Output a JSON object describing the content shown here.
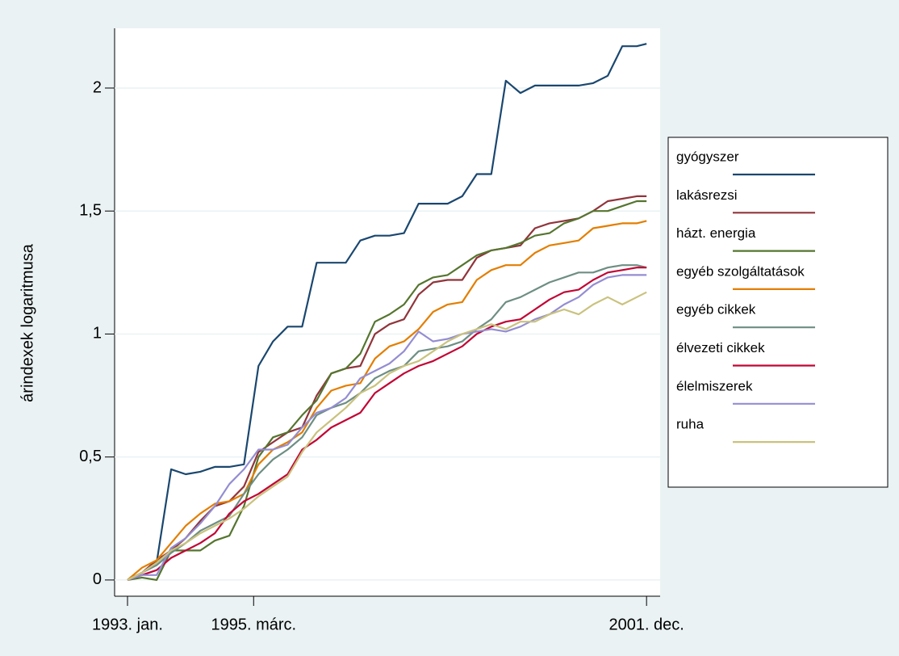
{
  "chart_data": {
    "type": "line",
    "y_label": "árindexek logaritmusa",
    "x": [
      0,
      3,
      6,
      9,
      12,
      15,
      18,
      21,
      24,
      27,
      30,
      33,
      36,
      39,
      42,
      45,
      48,
      51,
      54,
      57,
      60,
      63,
      66,
      69,
      72,
      75,
      78,
      81,
      84,
      87,
      90,
      93,
      96,
      99,
      102,
      105,
      107
    ],
    "xlim": [
      -2.66,
      109.8
    ],
    "xticks": [
      {
        "value": 0,
        "label": "1993. jan."
      },
      {
        "value": 26,
        "label": "1995. márc."
      },
      {
        "value": 107,
        "label": "2001. dec."
      }
    ],
    "ylim": [
      -0.066,
      2.243
    ],
    "yticks": [
      0,
      {
        "value": 0.5,
        "label": "0,5"
      },
      1,
      {
        "value": 1.5,
        "label": "1,5"
      },
      2
    ],
    "grid": true,
    "legend": "right",
    "series": [
      {
        "name": "gyógyszer",
        "color": "#1a476f",
        "values": [
          0,
          0.03,
          0.07,
          0.45,
          0.43,
          0.44,
          0.46,
          0.46,
          0.47,
          0.87,
          0.97,
          1.03,
          1.03,
          1.29,
          1.29,
          1.29,
          1.38,
          1.4,
          1.4,
          1.41,
          1.53,
          1.53,
          1.53,
          1.56,
          1.65,
          1.65,
          2.03,
          1.98,
          2.01,
          2.01,
          2.01,
          2.01,
          2.02,
          2.05,
          2.17,
          2.17,
          2.18
        ]
      },
      {
        "name": "lakásrezsi",
        "color": "#90353b",
        "values": [
          0,
          0.03,
          0.08,
          0.12,
          0.17,
          0.24,
          0.3,
          0.32,
          0.38,
          0.52,
          0.56,
          0.6,
          0.62,
          0.75,
          0.84,
          0.86,
          0.87,
          1.0,
          1.04,
          1.06,
          1.16,
          1.21,
          1.22,
          1.22,
          1.31,
          1.34,
          1.35,
          1.36,
          1.43,
          1.45,
          1.46,
          1.47,
          1.5,
          1.54,
          1.55,
          1.56,
          1.56
        ]
      },
      {
        "name": "házt. energia",
        "color": "#55752f",
        "values": [
          0,
          0.01,
          0,
          0.12,
          0.12,
          0.12,
          0.16,
          0.18,
          0.3,
          0.5,
          0.58,
          0.6,
          0.67,
          0.73,
          0.84,
          0.86,
          0.92,
          1.05,
          1.08,
          1.12,
          1.2,
          1.23,
          1.24,
          1.28,
          1.32,
          1.34,
          1.35,
          1.37,
          1.4,
          1.41,
          1.45,
          1.47,
          1.5,
          1.5,
          1.52,
          1.54,
          1.54
        ]
      },
      {
        "name": "egyéb szolgáltatások",
        "color": "#e37e00",
        "values": [
          0,
          0.05,
          0.08,
          0.15,
          0.22,
          0.27,
          0.31,
          0.32,
          0.35,
          0.47,
          0.53,
          0.56,
          0.6,
          0.7,
          0.77,
          0.79,
          0.8,
          0.9,
          0.95,
          0.97,
          1.02,
          1.09,
          1.12,
          1.13,
          1.22,
          1.26,
          1.28,
          1.28,
          1.33,
          1.36,
          1.37,
          1.38,
          1.43,
          1.44,
          1.45,
          1.45,
          1.46
        ]
      },
      {
        "name": "egyéb cikkek",
        "color": "#6e8e84",
        "values": [
          0,
          0.03,
          0.06,
          0.11,
          0.15,
          0.2,
          0.23,
          0.26,
          0.35,
          0.43,
          0.49,
          0.53,
          0.58,
          0.67,
          0.7,
          0.72,
          0.76,
          0.82,
          0.85,
          0.87,
          0.93,
          0.94,
          0.95,
          0.97,
          1.02,
          1.06,
          1.13,
          1.15,
          1.18,
          1.21,
          1.23,
          1.25,
          1.25,
          1.27,
          1.28,
          1.28,
          1.27
        ]
      },
      {
        "name": "élvezeti cikkek",
        "color": "#c10534",
        "values": [
          0,
          0.02,
          0.04,
          0.09,
          0.12,
          0.15,
          0.19,
          0.27,
          0.32,
          0.35,
          0.39,
          0.43,
          0.53,
          0.57,
          0.62,
          0.65,
          0.68,
          0.76,
          0.8,
          0.84,
          0.87,
          0.89,
          0.92,
          0.95,
          1.0,
          1.03,
          1.05,
          1.06,
          1.1,
          1.14,
          1.17,
          1.18,
          1.22,
          1.25,
          1.26,
          1.27,
          1.27
        ]
      },
      {
        "name": "élelmiszerek",
        "color": "#938dd2",
        "values": [
          0,
          0.02,
          0.02,
          0.13,
          0.17,
          0.23,
          0.3,
          0.39,
          0.45,
          0.53,
          0.53,
          0.55,
          0.62,
          0.68,
          0.7,
          0.74,
          0.82,
          0.85,
          0.88,
          0.93,
          1.01,
          0.97,
          0.98,
          1.0,
          1.01,
          1.02,
          1.01,
          1.03,
          1.06,
          1.08,
          1.12,
          1.15,
          1.2,
          1.23,
          1.24,
          1.24,
          1.24
        ]
      },
      {
        "name": "ruha",
        "color": "#cac27e",
        "values": [
          0,
          0.03,
          0.07,
          0.12,
          0.15,
          0.19,
          0.22,
          0.25,
          0.29,
          0.34,
          0.38,
          0.42,
          0.52,
          0.6,
          0.65,
          0.7,
          0.76,
          0.79,
          0.84,
          0.87,
          0.89,
          0.93,
          0.97,
          1.0,
          1.02,
          1.04,
          1.02,
          1.05,
          1.05,
          1.08,
          1.1,
          1.08,
          1.12,
          1.15,
          1.12,
          1.15,
          1.17
        ]
      }
    ]
  }
}
